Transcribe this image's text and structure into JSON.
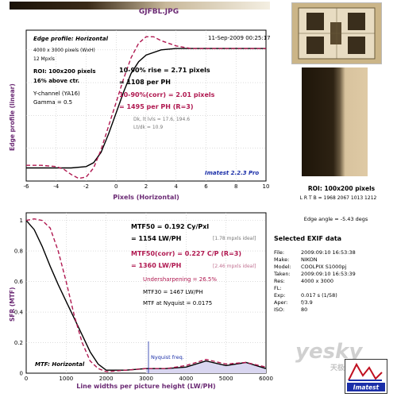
{
  "header": {
    "filename": "GJFBL.JPG"
  },
  "edge_plot": {
    "title": "Edge profile: Horizontal",
    "timestamp": "11-Sep-2009 00:25:17",
    "info_lines": [
      "4000 x 3000 pixels (WxH)",
      "12 Mpxls"
    ],
    "roi_line1": "ROI: 100x200 pixels",
    "roi_line2": "16% above ctr.",
    "channel": "Y-channel  (YA16)",
    "gamma": "Gamma = 0.5",
    "rise_line1": "10-90% rise = 2.71 pixels",
    "rise_line2": "= 1108 per PH",
    "corr_line1": "10-90%(corr) = 2.01 pixels",
    "corr_line2": "= 1495 per PH   (R=3)",
    "dk_line1": "Dk, lt lvls = 17.6, 194.6",
    "dk_line2": "Lt/dk = 10.9",
    "version": "Imatest 2.2.3 Pro",
    "ylabel": "Edge profile (linear)",
    "xlabel": "Pixels (Horizontal)",
    "xticks": [
      "-6",
      "-4",
      "-2",
      "0",
      "2",
      "4",
      "6",
      "8",
      "10"
    ]
  },
  "mtf_plot": {
    "mtf50_line1": "MTF50 = 0.192 Cy/Pxl",
    "mtf50_line2": "= 1154 LW/PH",
    "mtf50_ideal": "[1.78 mpxls ideal]",
    "corr_line1": "MTF50(corr) = 0.227 C/P   (R=3)",
    "corr_line2": "= 1360 LW/PH",
    "corr_ideal": "[2.46 mpxls ideal]",
    "undersharp": "Undersharpening = 26.5%",
    "mtf30": "MTF30 = 1467 LW/PH",
    "nyquist": "MTF at Nyquist = 0.0175",
    "nyq_label": "Nyquist freq.",
    "caption": "MTF: Horizontal",
    "ylabel": "SFR (MTF)",
    "xlabel": "Line widths per picture height (LW/PH)",
    "yticks": [
      "1",
      "0.8",
      "0.6",
      "0.4",
      "0.2",
      "0"
    ],
    "xticks": [
      "0",
      "1000",
      "2000",
      "3000",
      "4000",
      "5000",
      "6000"
    ]
  },
  "side": {
    "roi_label": "ROI: 100x200 pixels",
    "lrtb": "L R T B = 1968 2067  1013 1212",
    "edge_angle": "Edge angle = -5.43 degs",
    "exif_title": "Selected EXIF data",
    "exif": [
      {
        "k": "File:",
        "v": "2009:09:10 16:53:38"
      },
      {
        "k": "Make:",
        "v": "NIKON"
      },
      {
        "k": "Model:",
        "v": "COOLPIX S1000pj"
      },
      {
        "k": "Taken:",
        "v": "2009:09:10 16:53:39"
      },
      {
        "k": "Res:",
        "v": "4000 x 3000"
      },
      {
        "k": "FL:",
        "v": ""
      },
      {
        "k": "Exp:",
        "v": "0.017 s  (1/58)"
      },
      {
        "k": "Aper:",
        "v": "f/3.9"
      },
      {
        "k": "ISO:",
        "v": "80"
      }
    ],
    "logo": "Imatest",
    "watermark": "yesky",
    "watermark_sub": "天极网"
  },
  "chart_data": [
    {
      "type": "line",
      "title": "Edge profile: Horizontal",
      "xlabel": "Pixels (Horizontal)",
      "ylabel": "Edge profile (linear)",
      "xlim": [
        -6,
        10
      ],
      "ylim": [
        0,
        1.15
      ],
      "grid": true,
      "series": [
        {
          "color": "#000000",
          "x": [
            -6,
            -5,
            -4,
            -3,
            -2,
            -1.5,
            -1,
            -0.5,
            0,
            0.5,
            1,
            1.5,
            2,
            3,
            4,
            5,
            6,
            7,
            8,
            9,
            10
          ],
          "y": [
            0.1,
            0.1,
            0.1,
            0.1,
            0.11,
            0.14,
            0.22,
            0.36,
            0.52,
            0.68,
            0.82,
            0.91,
            0.96,
            1.0,
            1.01,
            1.01,
            1.01,
            1.01,
            1.01,
            1.01,
            1.01
          ]
        },
        {
          "color": "#b01850",
          "x": [
            -6,
            -5,
            -4,
            -3.5,
            -3,
            -2.5,
            -2,
            -1.5,
            -1,
            -0.5,
            0,
            0.5,
            1,
            1.5,
            2,
            2.5,
            3,
            4,
            5,
            6,
            7,
            8,
            9,
            10
          ],
          "y": [
            0.12,
            0.12,
            0.11,
            0.09,
            0.05,
            0.02,
            0.03,
            0.1,
            0.24,
            0.42,
            0.6,
            0.78,
            0.94,
            1.05,
            1.1,
            1.1,
            1.07,
            1.03,
            1.01,
            1.01,
            1.01,
            1.01,
            1.01,
            1.01
          ]
        }
      ]
    },
    {
      "type": "line",
      "title": "MTF: Horizontal",
      "xlabel": "Line widths per picture height (LW/PH)",
      "ylabel": "SFR (MTF)",
      "xlim": [
        0,
        6000
      ],
      "ylim": [
        0,
        1.05
      ],
      "grid": true,
      "series": [
        {
          "color": "#000000",
          "x": [
            0,
            200,
            400,
            600,
            800,
            1000,
            1200,
            1400,
            1600,
            1800,
            2000,
            2500,
            3000,
            3500,
            4000,
            4500,
            5000,
            5500,
            6000
          ],
          "y": [
            1.0,
            0.94,
            0.83,
            0.7,
            0.58,
            0.47,
            0.36,
            0.25,
            0.14,
            0.06,
            0.02,
            0.02,
            0.03,
            0.03,
            0.04,
            0.08,
            0.05,
            0.07,
            0.03
          ]
        },
        {
          "color": "#b01850",
          "x": [
            0,
            200,
            400,
            600,
            800,
            1000,
            1200,
            1400,
            1600,
            1800,
            2000,
            2500,
            3000,
            3500,
            4000,
            4500,
            5000,
            5500,
            6000
          ],
          "y": [
            1.0,
            1.01,
            1.0,
            0.95,
            0.8,
            0.6,
            0.38,
            0.2,
            0.08,
            0.03,
            0.01,
            0.02,
            0.03,
            0.03,
            0.05,
            0.09,
            0.06,
            0.07,
            0.04
          ]
        }
      ]
    }
  ]
}
